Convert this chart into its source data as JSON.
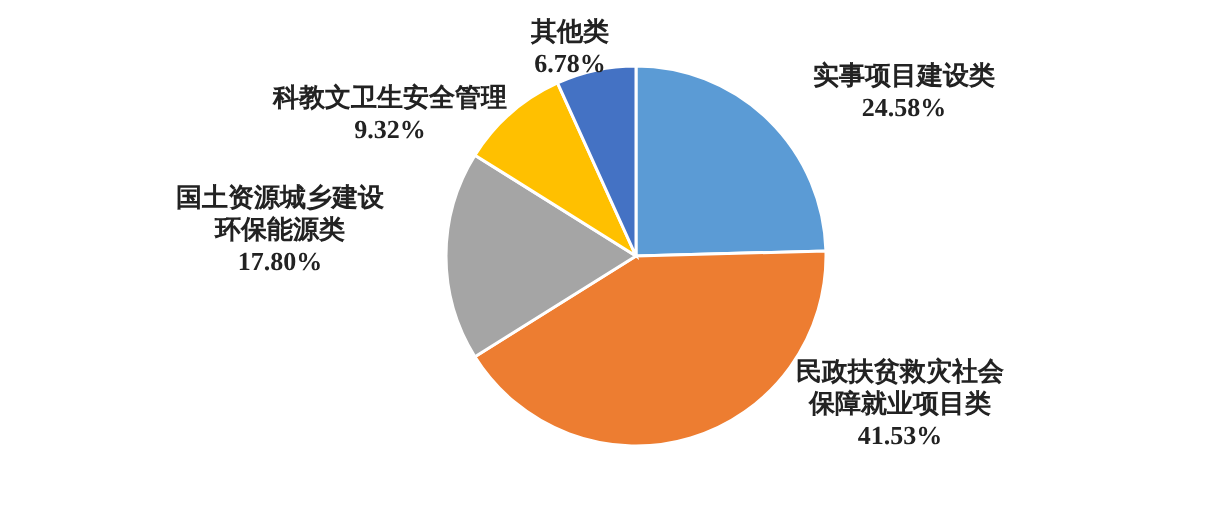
{
  "chart_data": {
    "type": "pie",
    "categories": [
      "实事项目建设类",
      "民政扶贫救灾社会保障就业项目类",
      "国土资源城乡建设环保能源类",
      "科教文卫生安全管理",
      "其他类"
    ],
    "values": [
      24.58,
      41.53,
      17.8,
      9.32,
      6.78
    ],
    "value_labels": [
      "24.58%",
      "41.53%",
      "17.80%",
      "9.32%",
      "6.78%"
    ],
    "colors": [
      "#5b9bd5",
      "#ed7d31",
      "#a5a5a5",
      "#ffc000",
      "#4472c4"
    ]
  }
}
